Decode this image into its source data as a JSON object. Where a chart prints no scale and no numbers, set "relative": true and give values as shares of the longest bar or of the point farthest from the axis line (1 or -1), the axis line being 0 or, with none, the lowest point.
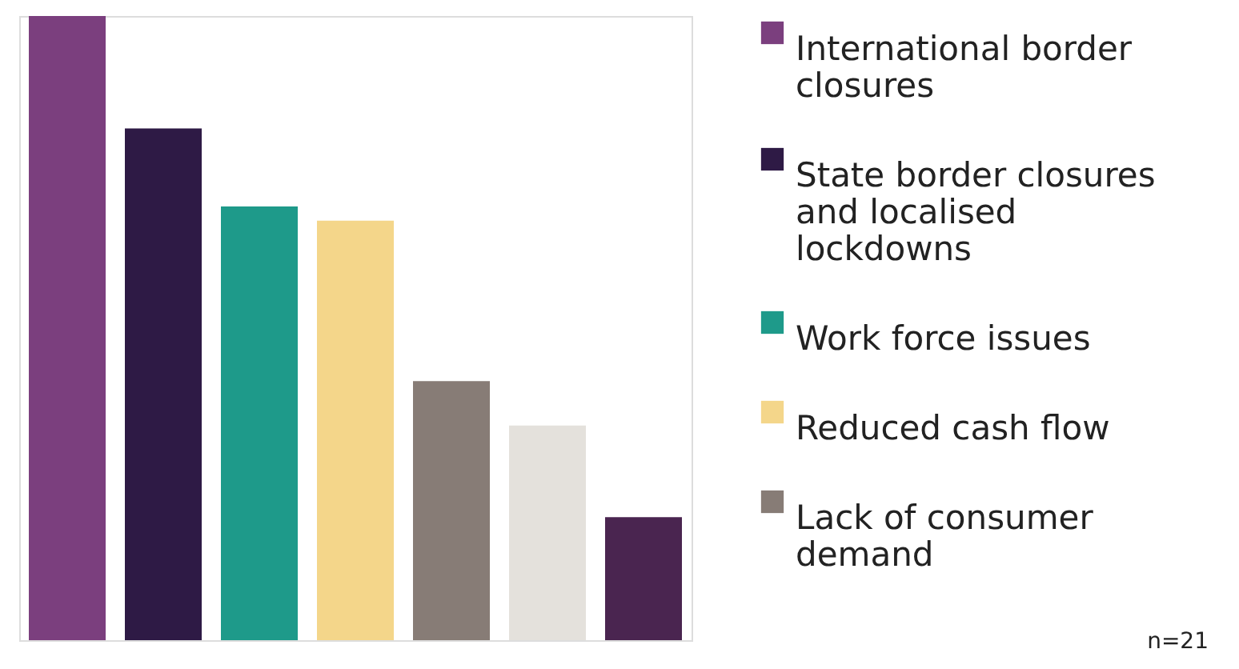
{
  "chart_data": {
    "type": "bar",
    "relative": true,
    "legend": "right",
    "categories": [
      null
    ],
    "series": [
      {
        "name": "International border closures",
        "color": "#7b3f7e",
        "values": [
          1
        ]
      },
      {
        "name": "State border closures and localised lockdowns",
        "color": "#2e1a45",
        "values": [
          0.82
        ]
      },
      {
        "name": "Work force issues",
        "color": "#1e9a8a",
        "values": [
          0.695
        ]
      },
      {
        "name": "Reduced cash flow",
        "color": "#f4d68a",
        "values": [
          0.672
        ]
      },
      {
        "name": "Lack of consumer demand",
        "color": "#877c76",
        "values": [
          0.415
        ]
      },
      {
        "color": "#e4e1dc",
        "values": [
          0.344
        ]
      },
      {
        "color": "#4a2550",
        "values": [
          0.197
        ]
      }
    ],
    "annotations": [
      "n=21"
    ]
  }
}
